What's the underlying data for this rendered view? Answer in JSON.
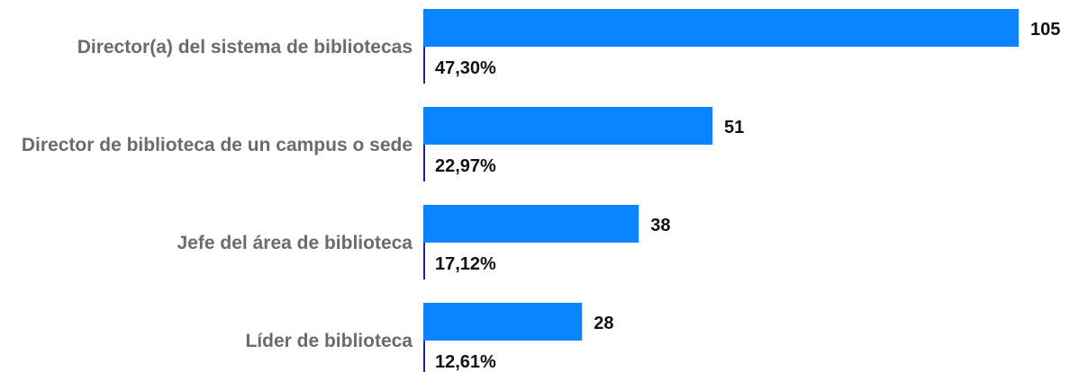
{
  "chart_data": {
    "type": "bar",
    "orientation": "horizontal",
    "categories": [
      "Director(a) del sistema de bibliotecas",
      "Director de biblioteca de un campus o sede",
      "Jefe del área de biblioteca",
      "Líder de biblioteca"
    ],
    "values": [
      105,
      51,
      38,
      28
    ],
    "percentages": [
      "47,30%",
      "22,97%",
      "17,12%",
      "12,61%"
    ],
    "value_labels": [
      "105",
      "51",
      "38",
      "28"
    ],
    "xlim": [
      0,
      105
    ],
    "grid": false,
    "legend": "none",
    "bar_color": "#0a84ff",
    "axis_color": "#1a2a8c"
  }
}
